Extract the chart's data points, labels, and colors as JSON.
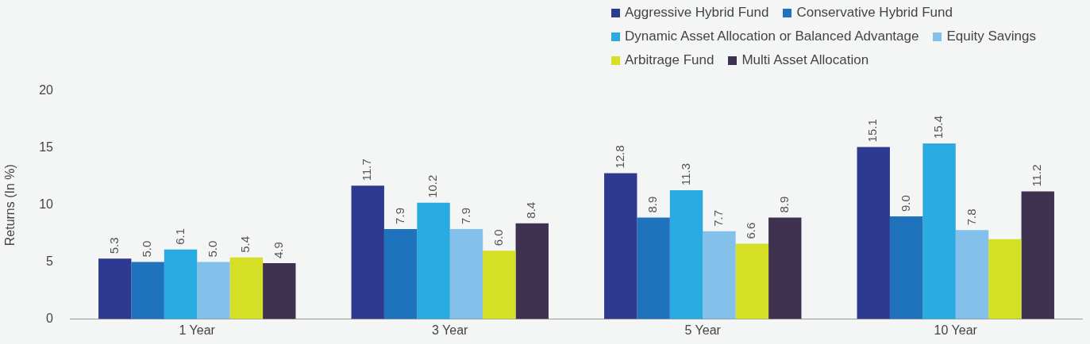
{
  "chart_data": {
    "type": "bar",
    "ylabel": "Returns (In %)",
    "categories": [
      "1 Year",
      "3 Year",
      "5 Year",
      "10 Year"
    ],
    "series": [
      {
        "name": "Aggressive Hybrid Fund",
        "color": "#2e3a8f",
        "values": [
          5.3,
          11.7,
          12.8,
          15.1
        ],
        "value_labels": [
          "5.3",
          "11.7",
          "12.8",
          "15.1"
        ]
      },
      {
        "name": "Conservative Hybrid Fund",
        "color": "#1f73bd",
        "values": [
          5.0,
          7.9,
          8.9,
          9.0
        ],
        "value_labels": [
          "5.0",
          "7.9",
          "8.9",
          "9.0"
        ]
      },
      {
        "name": "Dynamic Asset Allocation or Balanced Advantage",
        "color": "#29aae1",
        "values": [
          6.1,
          10.2,
          11.3,
          15.4
        ],
        "value_labels": [
          "6.1",
          "10.2",
          "11.3",
          "15.4"
        ]
      },
      {
        "name": "Equity Savings",
        "color": "#84c1ea",
        "values": [
          5.0,
          7.9,
          7.7,
          7.8
        ],
        "value_labels": [
          "5.0",
          "7.9",
          "7.7",
          "7.8"
        ]
      },
      {
        "name": "Arbitrage Fund",
        "color": "#d4df25",
        "values": [
          5.4,
          6.0,
          6.6,
          7.0
        ],
        "value_labels": [
          "5.4",
          "6.0",
          "6.6",
          null
        ]
      },
      {
        "name": "Multi Asset Allocation",
        "color": "#3f3150",
        "values": [
          4.9,
          8.4,
          8.9,
          11.2
        ],
        "value_labels": [
          "4.9",
          "8.4",
          "8.9",
          "11.2"
        ]
      }
    ],
    "ylim": [
      0,
      20
    ],
    "yticks": [
      0,
      5,
      10,
      15,
      20
    ],
    "grid": false,
    "legend": "top right"
  }
}
